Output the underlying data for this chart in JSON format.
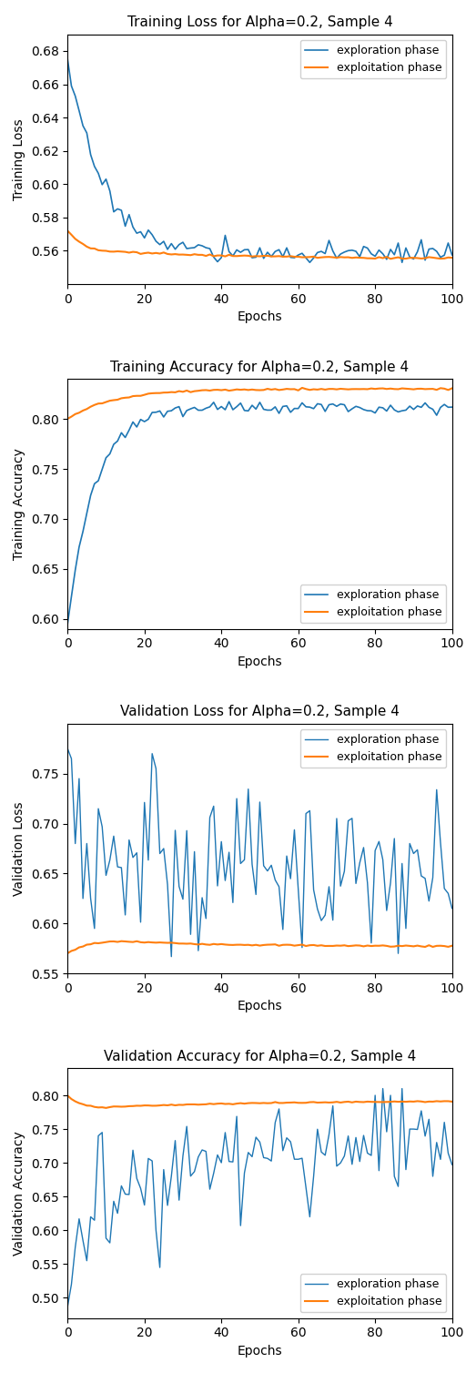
{
  "title1": "Training Loss for Alpha=0.2, Sample 4",
  "title2": "Training Accuracy for Alpha=0.2, Sample 4",
  "title3": "Validation Loss for Alpha=0.2, Sample 4",
  "title4": "Validation Accuracy for Alpha=0.2, Sample 4",
  "xlabel": "Epochs",
  "ylabel1": "Training Loss",
  "ylabel2": "Training Accuracy",
  "ylabel3": "Validation Loss",
  "ylabel4": "Validation Accuracy",
  "color_exploration": "#1f77b4",
  "color_exploitation": "#ff7f0e",
  "legend_exploration": "exploration phase",
  "legend_exploitation": "exploitation phase",
  "n_epochs": 101,
  "ylim1": [
    0.54,
    0.69
  ],
  "ylim2": [
    0.59,
    0.84
  ],
  "ylim3": [
    0.55,
    0.8
  ],
  "ylim4": [
    0.47,
    0.84
  ],
  "yticks1": [
    0.56,
    0.58,
    0.6,
    0.62,
    0.64,
    0.66,
    0.68
  ],
  "yticks2": [
    0.6,
    0.65,
    0.7,
    0.75,
    0.8
  ],
  "yticks3": [
    0.55,
    0.6,
    0.65,
    0.7,
    0.75
  ],
  "yticks4": [
    0.5,
    0.55,
    0.6,
    0.65,
    0.7,
    0.75,
    0.8
  ]
}
